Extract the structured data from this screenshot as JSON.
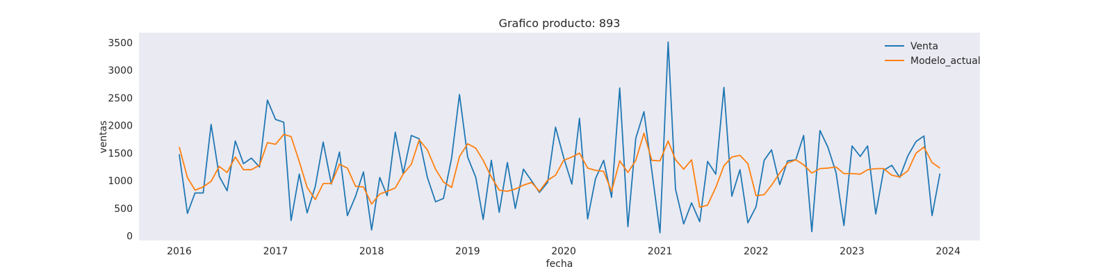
{
  "chart_data": {
    "type": "line",
    "title": "Grafico producto: 893",
    "xlabel": "fecha",
    "ylabel": "ventas",
    "ylim": [
      -80,
      3680
    ],
    "y_ticks": [
      0,
      500,
      1000,
      1500,
      2000,
      2500,
      3000,
      3500
    ],
    "x_range": [
      "2015-08-01",
      "2024-05-01"
    ],
    "x_ticks": [
      "2016-01-01",
      "2017-01-01",
      "2018-01-01",
      "2019-01-01",
      "2020-01-01",
      "2021-01-01",
      "2022-01-01",
      "2023-01-01",
      "2024-01-01"
    ],
    "x_tick_labels": [
      "2016",
      "2017",
      "2018",
      "2019",
      "2020",
      "2021",
      "2022",
      "2023",
      "2024"
    ],
    "grid": false,
    "background": "#eaeaf2",
    "legend_position": "top-right",
    "x_start": "2016-01",
    "x_step": "month",
    "series": [
      {
        "name": "Venta",
        "color": "#1f77b4",
        "values": [
          1480,
          410,
          780,
          780,
          2020,
          1080,
          820,
          1720,
          1310,
          1410,
          1250,
          2460,
          2110,
          2060,
          280,
          1120,
          420,
          900,
          1700,
          940,
          1520,
          370,
          720,
          1160,
          110,
          1060,
          730,
          1880,
          1130,
          1820,
          1760,
          1060,
          620,
          680,
          1410,
          2560,
          1430,
          1060,
          300,
          1370,
          430,
          1330,
          500,
          1210,
          1000,
          790,
          970,
          1970,
          1420,
          940,
          2130,
          310,
          1040,
          1370,
          700,
          2680,
          170,
          1770,
          2250,
          1180,
          60,
          3510,
          850,
          220,
          600,
          260,
          1350,
          1120,
          2690,
          720,
          1200,
          240,
          530,
          1370,
          1560,
          930,
          1360,
          1380,
          1820,
          80,
          1910,
          1610,
          1150,
          190,
          1630,
          1440,
          1630,
          400,
          1190,
          1280,
          1060,
          1450,
          1710,
          1810,
          370,
          1130
        ]
      },
      {
        "name": "Modelo_actual",
        "color": "#ff7f0e",
        "values": [
          1610,
          1060,
          830,
          890,
          990,
          1260,
          1150,
          1430,
          1200,
          1200,
          1280,
          1690,
          1660,
          1840,
          1800,
          1350,
          880,
          660,
          950,
          950,
          1300,
          1230,
          900,
          890,
          580,
          760,
          810,
          870,
          1120,
          1300,
          1740,
          1560,
          1210,
          980,
          880,
          1440,
          1670,
          1590,
          1370,
          1070,
          830,
          810,
          850,
          920,
          970,
          810,
          1010,
          1100,
          1370,
          1430,
          1500,
          1230,
          1190,
          1170,
          810,
          1360,
          1150,
          1370,
          1860,
          1370,
          1360,
          1720,
          1380,
          1210,
          1380,
          520,
          560,
          880,
          1270,
          1430,
          1460,
          1310,
          730,
          750,
          920,
          1140,
          1320,
          1380,
          1290,
          1140,
          1220,
          1230,
          1250,
          1130,
          1130,
          1120,
          1200,
          1220,
          1220,
          1100,
          1070,
          1180,
          1500,
          1610,
          1330,
          1230
        ]
      }
    ]
  }
}
